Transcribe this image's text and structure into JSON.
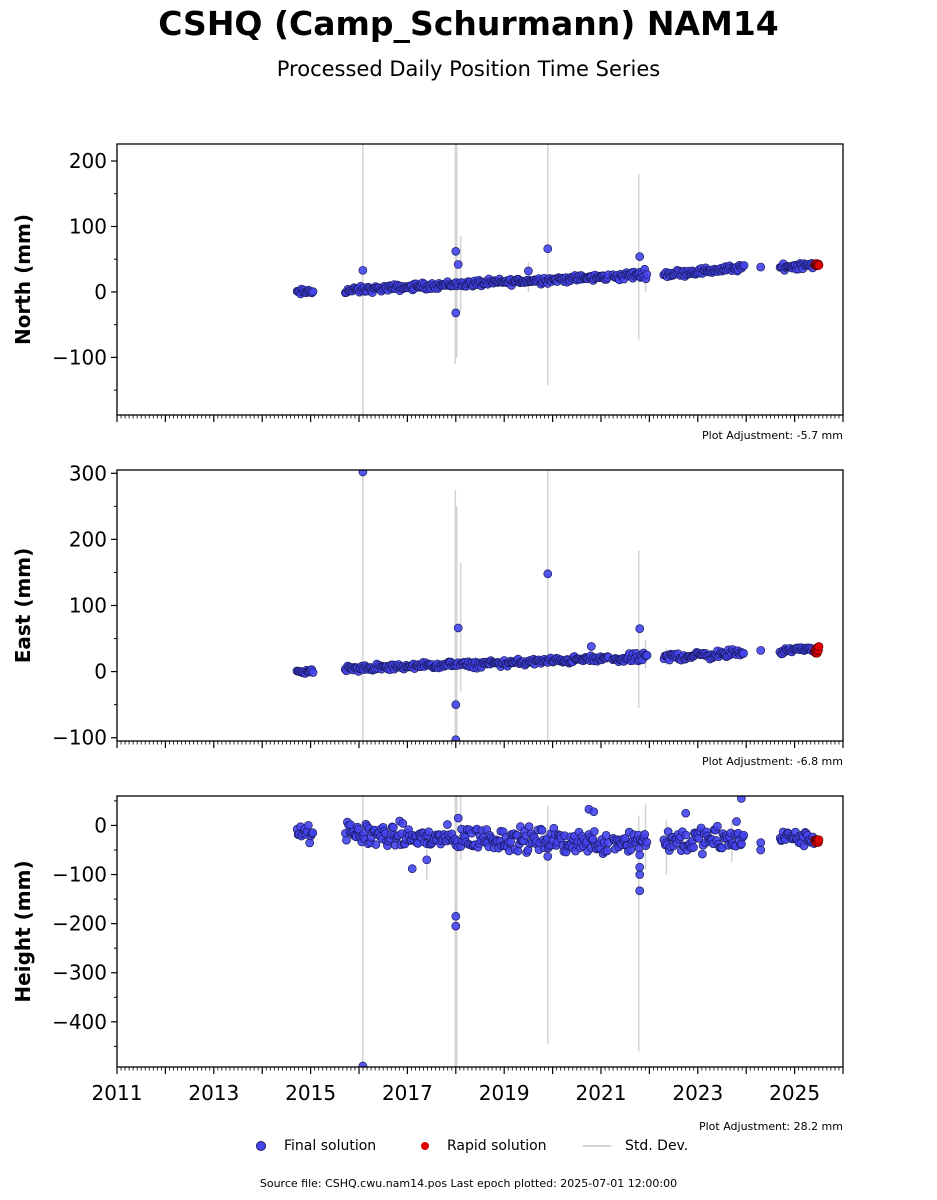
{
  "header": {
    "title": "CSHQ (Camp_Schurmann) NAM14",
    "subtitle": "Processed Daily Position Time Series"
  },
  "legend": {
    "final": "Final solution",
    "rapid": "Rapid solution",
    "std": "Std. Dev."
  },
  "footer": {
    "source": "Source file: CSHQ.cwu.nam14.pos  Last epoch plotted: 2025-07-01 12:00:00"
  },
  "colors": {
    "final": "#4444ee",
    "rapid": "#dd0000",
    "stddev": "#d3d3d3",
    "marker_edge": "#1a1a5e"
  },
  "chart_data": [
    {
      "type": "scatter",
      "ylabel": "North (mm)",
      "adjustment": "Plot Adjustment: -5.7 mm",
      "xlim": [
        2011,
        2026
      ],
      "ylim": [
        -188,
        226
      ],
      "yticks": [
        -100,
        0,
        100,
        200
      ],
      "ytick_labels": [
        "−100",
        "0",
        "100",
        "200"
      ],
      "segments": [
        {
          "x0": 2014.72,
          "x1": 2015.05,
          "y0": -1,
          "y1": 1,
          "noise": 4
        },
        {
          "x0": 2015.72,
          "x1": 2018.05,
          "y0": 2,
          "y1": 12,
          "noise": 4
        },
        {
          "x0": 2018.1,
          "x1": 2021.15,
          "y0": 12,
          "y1": 23,
          "noise": 4
        },
        {
          "x0": 2021.25,
          "x1": 2021.95,
          "y0": 23,
          "y1": 28,
          "noise": 5
        },
        {
          "x0": 2022.3,
          "x1": 2023.95,
          "y0": 27,
          "y1": 37,
          "noise": 4
        },
        {
          "x0": 2024.7,
          "x1": 2025.4,
          "y0": 38,
          "y1": 42,
          "noise": 4
        }
      ],
      "outliers": [
        {
          "x": 2016.08,
          "y": 33
        },
        {
          "x": 2018.0,
          "y": 62
        },
        {
          "x": 2018.05,
          "y": 42
        },
        {
          "x": 2018.0,
          "y": -32
        },
        {
          "x": 2019.9,
          "y": 66
        },
        {
          "x": 2021.8,
          "y": 54
        },
        {
          "x": 2019.5,
          "y": 32
        },
        {
          "x": 2024.3,
          "y": 38
        }
      ],
      "rapid": {
        "x0": 2025.42,
        "x1": 2025.5,
        "y": 41,
        "noise": 2
      },
      "stddev_bars": [
        {
          "x": 2016.08,
          "y0": -188,
          "y1": 226
        },
        {
          "x": 2017.99,
          "y0": -110,
          "y1": 226
        },
        {
          "x": 2018.02,
          "y0": -100,
          "y1": 226
        },
        {
          "x": 2018.1,
          "y0": -30,
          "y1": 85
        },
        {
          "x": 2019.9,
          "y0": -143,
          "y1": 226
        },
        {
          "x": 2021.78,
          "y0": -74,
          "y1": 180
        },
        {
          "x": 2019.5,
          "y0": 0,
          "y1": 45
        },
        {
          "x": 2021.92,
          "y0": 0,
          "y1": 40
        },
        {
          "x": 2022.35,
          "y0": 20,
          "y1": 35
        }
      ]
    },
    {
      "type": "scatter",
      "ylabel": "East (mm)",
      "adjustment": "Plot Adjustment: -6.8 mm",
      "xlim": [
        2011,
        2026
      ],
      "ylim": [
        -105,
        305
      ],
      "yticks": [
        -100,
        0,
        100,
        200,
        300
      ],
      "ytick_labels": [
        "−100",
        "0",
        "100",
        "200",
        "300"
      ],
      "segments": [
        {
          "x0": 2014.72,
          "x1": 2015.05,
          "y0": -1,
          "y1": 2,
          "noise": 4
        },
        {
          "x0": 2015.72,
          "x1": 2018.05,
          "y0": 4,
          "y1": 11,
          "noise": 4
        },
        {
          "x0": 2018.1,
          "x1": 2021.15,
          "y0": 10,
          "y1": 20,
          "noise": 4
        },
        {
          "x0": 2021.25,
          "x1": 2021.95,
          "y0": 18,
          "y1": 22,
          "noise": 5
        },
        {
          "x0": 2022.3,
          "x1": 2023.95,
          "y0": 22,
          "y1": 28,
          "noise": 5
        },
        {
          "x0": 2024.7,
          "x1": 2025.4,
          "y0": 32,
          "y1": 35,
          "noise": 4
        }
      ],
      "outliers": [
        {
          "x": 2016.08,
          "y": 302
        },
        {
          "x": 2018.05,
          "y": 66
        },
        {
          "x": 2018.0,
          "y": -50
        },
        {
          "x": 2018.0,
          "y": -103
        },
        {
          "x": 2019.9,
          "y": 148
        },
        {
          "x": 2021.8,
          "y": 65
        },
        {
          "x": 2020.8,
          "y": 38
        },
        {
          "x": 2024.3,
          "y": 32
        }
      ],
      "rapid": {
        "x0": 2025.42,
        "x1": 2025.5,
        "y": 32,
        "noise": 5
      },
      "stddev_bars": [
        {
          "x": 2016.08,
          "y0": -105,
          "y1": 305
        },
        {
          "x": 2017.99,
          "y0": -105,
          "y1": 275
        },
        {
          "x": 2018.02,
          "y0": -105,
          "y1": 250
        },
        {
          "x": 2018.1,
          "y0": -30,
          "y1": 165
        },
        {
          "x": 2019.9,
          "y0": -105,
          "y1": 305
        },
        {
          "x": 2021.78,
          "y0": -55,
          "y1": 183
        },
        {
          "x": 2021.92,
          "y0": 5,
          "y1": 48
        },
        {
          "x": 2022.35,
          "y0": 10,
          "y1": 35
        }
      ]
    },
    {
      "type": "scatter",
      "ylabel": "Height (mm)",
      "adjustment": "Plot Adjustment: 28.2 mm",
      "xlim": [
        2011,
        2026
      ],
      "ylim": [
        -492,
        60
      ],
      "yticks": [
        -400,
        -300,
        -200,
        -100,
        0
      ],
      "ytick_labels": [
        "−400",
        "−300",
        "−200",
        "−100",
        "0"
      ],
      "xticks": [
        2011,
        2013,
        2015,
        2017,
        2019,
        2021,
        2023,
        2025
      ],
      "xtick_labels": [
        "2011",
        "2013",
        "2015",
        "2017",
        "2019",
        "2021",
        "2023",
        "2025"
      ],
      "segments": [
        {
          "x0": 2014.72,
          "x1": 2015.05,
          "y0": -12,
          "y1": -20,
          "noise": 14
        },
        {
          "x0": 2015.72,
          "x1": 2018.05,
          "y0": -15,
          "y1": -30,
          "noise": 20
        },
        {
          "x0": 2018.1,
          "x1": 2021.15,
          "y0": -25,
          "y1": -35,
          "noise": 20
        },
        {
          "x0": 2021.25,
          "x1": 2021.95,
          "y0": -30,
          "y1": -30,
          "noise": 22
        },
        {
          "x0": 2022.3,
          "x1": 2023.95,
          "y0": -30,
          "y1": -30,
          "noise": 22
        },
        {
          "x0": 2024.7,
          "x1": 2025.4,
          "y0": -22,
          "y1": -30,
          "noise": 12
        }
      ],
      "outliers": [
        {
          "x": 2016.08,
          "y": -490
        },
        {
          "x": 2018.0,
          "y": -185
        },
        {
          "x": 2018.0,
          "y": -205
        },
        {
          "x": 2018.05,
          "y": 15
        },
        {
          "x": 2019.9,
          "y": -63
        },
        {
          "x": 2021.8,
          "y": -133
        },
        {
          "x": 2021.8,
          "y": -100
        },
        {
          "x": 2021.8,
          "y": -85
        },
        {
          "x": 2021.8,
          "y": -60
        },
        {
          "x": 2017.1,
          "y": -88
        },
        {
          "x": 2017.4,
          "y": -70
        },
        {
          "x": 2020.75,
          "y": 33
        },
        {
          "x": 2020.85,
          "y": 28
        },
        {
          "x": 2022.75,
          "y": 25
        },
        {
          "x": 2023.9,
          "y": 55
        },
        {
          "x": 2023.8,
          "y": 8
        },
        {
          "x": 2024.3,
          "y": -35
        },
        {
          "x": 2024.3,
          "y": -50
        }
      ],
      "rapid": {
        "x0": 2025.42,
        "x1": 2025.5,
        "y": -30,
        "noise": 5
      },
      "stddev_bars": [
        {
          "x": 2016.08,
          "y0": -492,
          "y1": 60
        },
        {
          "x": 2017.99,
          "y0": -492,
          "y1": 60
        },
        {
          "x": 2018.02,
          "y0": -492,
          "y1": 60
        },
        {
          "x": 2018.1,
          "y0": -70,
          "y1": 60
        },
        {
          "x": 2019.9,
          "y0": -445,
          "y1": 40
        },
        {
          "x": 2021.78,
          "y0": -460,
          "y1": 20
        },
        {
          "x": 2021.92,
          "y0": -90,
          "y1": 45
        },
        {
          "x": 2017.4,
          "y0": -110,
          "y1": -30
        },
        {
          "x": 2022.35,
          "y0": -100,
          "y1": 10
        },
        {
          "x": 2023.7,
          "y0": -75,
          "y1": 10
        }
      ]
    }
  ]
}
